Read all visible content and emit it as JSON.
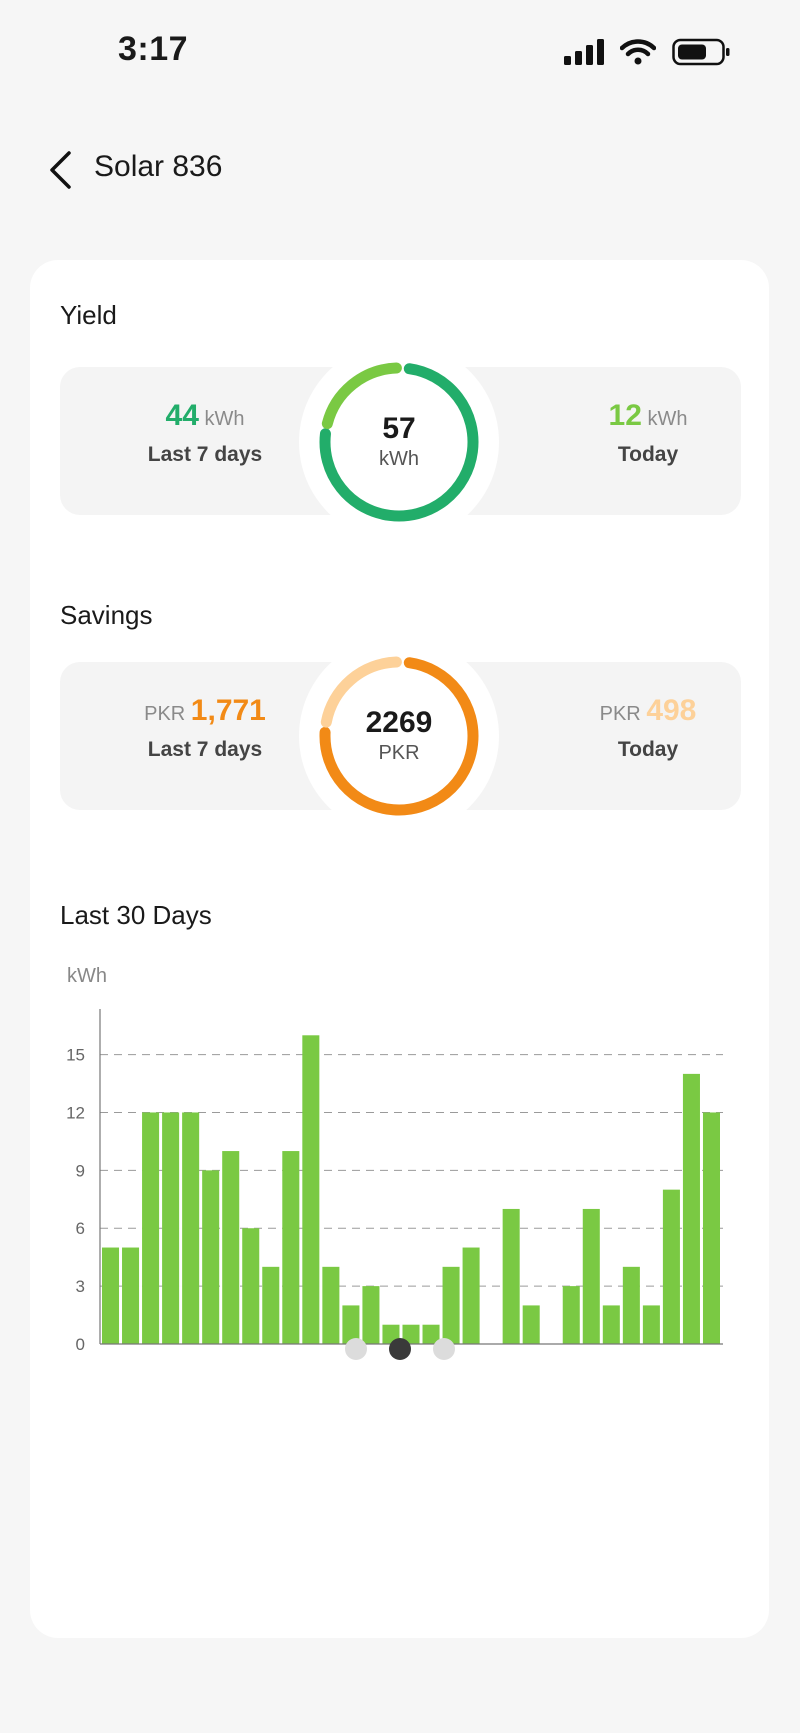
{
  "status": {
    "time": "3:17"
  },
  "header": {
    "title": "Solar 836"
  },
  "yield": {
    "title": "Yield",
    "last7": {
      "value": "44",
      "unit": "kWh",
      "label": "Last 7 days"
    },
    "total": {
      "value": "57",
      "unit": "kWh"
    },
    "today": {
      "value": "12",
      "unit": "kWh",
      "label": "Today"
    },
    "ring_fraction_today": 0.21,
    "colors": {
      "main": "#22ad6a",
      "today": "#7ac943"
    }
  },
  "savings": {
    "title": "Savings",
    "last7": {
      "currency": "PKR",
      "value": "1,771",
      "label": "Last 7 days"
    },
    "total": {
      "value": "2269",
      "unit": "PKR"
    },
    "today": {
      "currency": "PKR",
      "value": "498",
      "label": "Today"
    },
    "ring_fraction_today": 0.22,
    "colors": {
      "main": "#f28a16",
      "today": "#fdd199"
    }
  },
  "chart_section": {
    "title": "Last 30 Days"
  },
  "chart_data": {
    "type": "bar",
    "ylabel": "kWh",
    "ylim": [
      0,
      17
    ],
    "yticks": [
      0,
      3,
      6,
      9,
      12,
      15
    ],
    "values": [
      5,
      5,
      12,
      12,
      12,
      9,
      10,
      6,
      4,
      10,
      16,
      4,
      2,
      3,
      1,
      1,
      1,
      4,
      5,
      0,
      7,
      2,
      0,
      3,
      7,
      2,
      4,
      2,
      8,
      14,
      12
    ],
    "grid": true,
    "color": "#7ac943"
  },
  "pager": {
    "count": 3,
    "active": 1
  }
}
